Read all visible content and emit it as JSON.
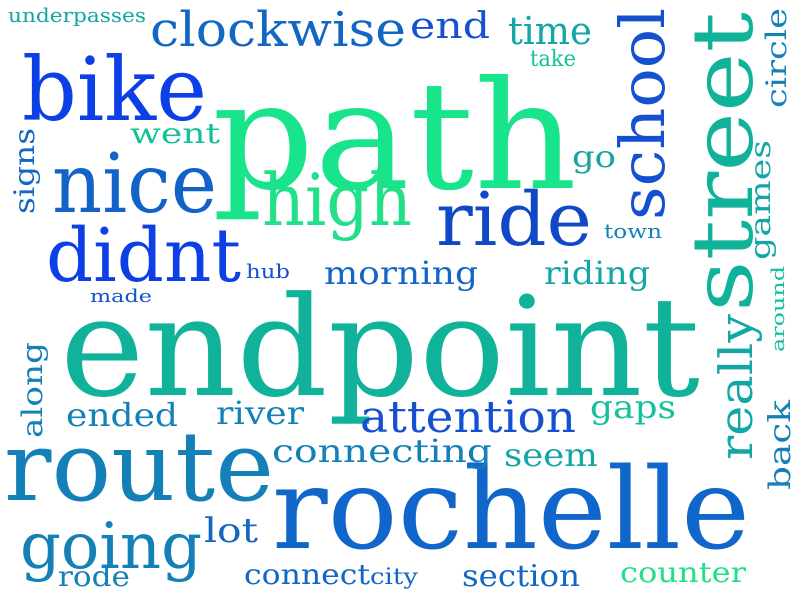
{
  "words": {
    "path": "path",
    "endpoint": "endpoint",
    "rochelle": "rochelle",
    "route": "route",
    "street": "street",
    "bike": "bike",
    "nice": "nice",
    "didnt": "didnt",
    "high": "high",
    "ride": "ride",
    "school": "school",
    "clockwise": "clockwise",
    "going": "going",
    "attention": "attention",
    "really": "really",
    "connecting": "connecting",
    "morning": "morning",
    "riding": "riding",
    "end": "end",
    "time": "time",
    "take": "take",
    "circle": "circle",
    "underpasses": "underpasses",
    "signs": "signs",
    "went": "went",
    "go": "go",
    "games": "games",
    "town": "town",
    "hub": "hub",
    "made": "made",
    "around": "around",
    "along": "along",
    "ended": "ended",
    "river": "river",
    "gaps": "gaps",
    "back": "back",
    "seem": "seem",
    "lot": "lot",
    "rode": "rode",
    "connect": "connect",
    "city": "city",
    "section": "section",
    "counter": "counter"
  }
}
